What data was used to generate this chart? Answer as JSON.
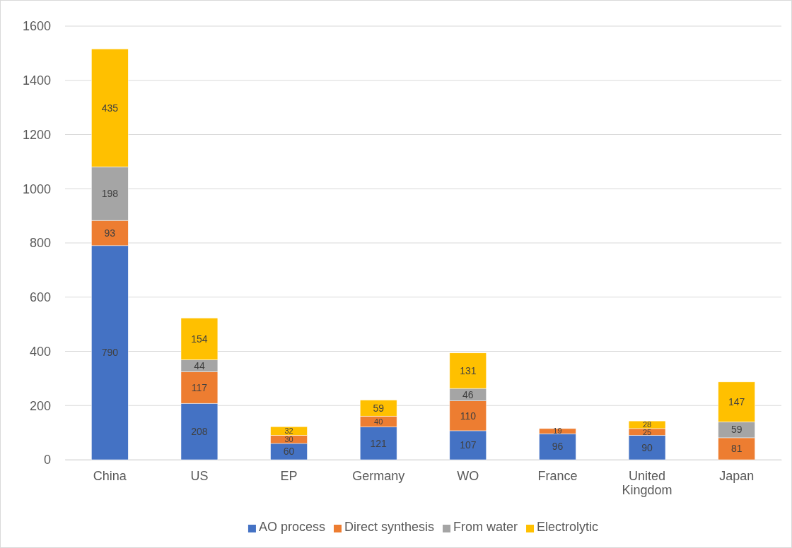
{
  "chart_data": {
    "type": "bar",
    "stacked": true,
    "categories": [
      "China",
      "US",
      "EP",
      "Germany",
      "WO",
      "France",
      "United Kingdom",
      "Japan"
    ],
    "series": [
      {
        "name": "AO process",
        "color": "#4472c4",
        "values": [
          790,
          208,
          60,
          121,
          107,
          96,
          90,
          null
        ]
      },
      {
        "name": "Direct synthesis",
        "color": "#ed7d31",
        "values": [
          93,
          117,
          30,
          40,
          110,
          19,
          25,
          81
        ]
      },
      {
        "name": "From water",
        "color": "#a5a5a5",
        "values": [
          198,
          44,
          null,
          null,
          46,
          null,
          null,
          59
        ]
      },
      {
        "name": "Electrolytic",
        "color": "#ffc000",
        "values": [
          435,
          154,
          32,
          59,
          131,
          null,
          28,
          147
        ]
      }
    ],
    "ylim": [
      0,
      1600
    ],
    "yticks": [
      0,
      200,
      400,
      600,
      800,
      1000,
      1200,
      1400,
      1600
    ],
    "grid": "y",
    "legend": "bottom",
    "data_labels": true
  }
}
